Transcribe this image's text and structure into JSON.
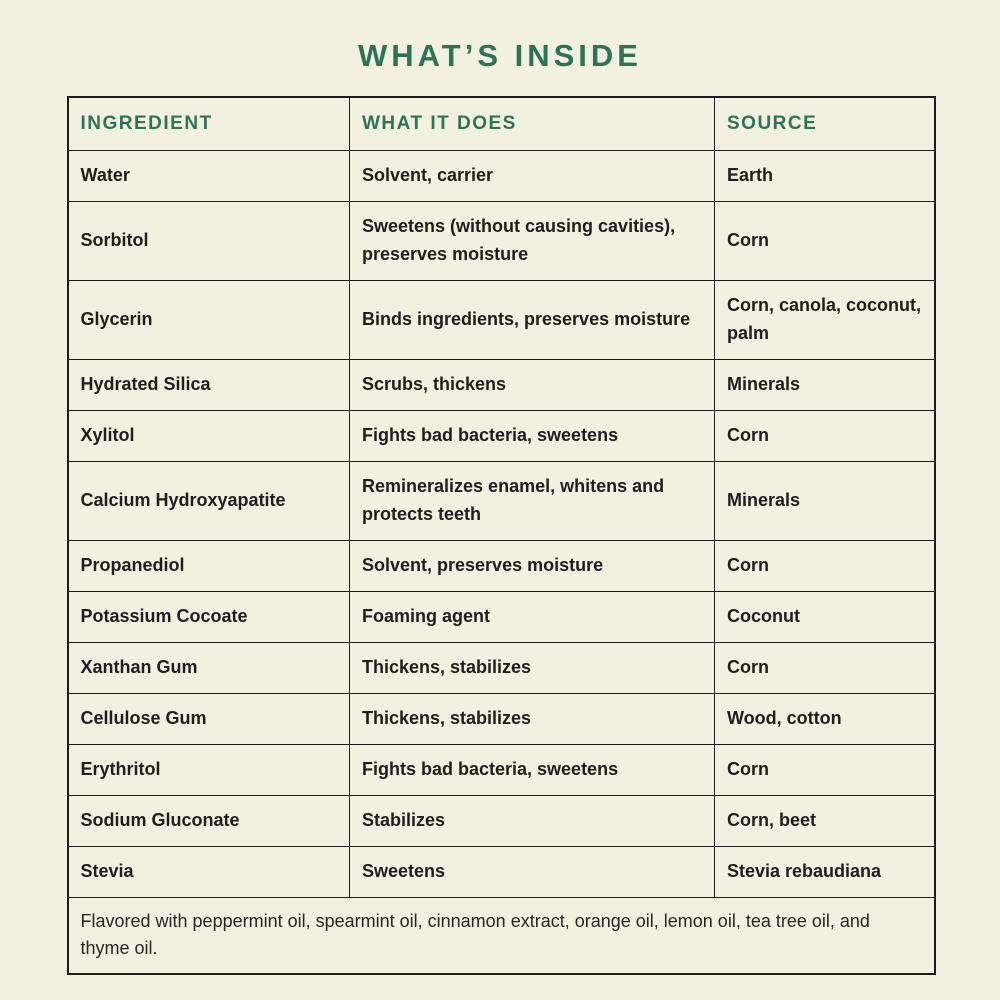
{
  "page": {
    "title": "WHAT’S INSIDE",
    "colors": {
      "background": "#f2f0e1",
      "accent_green": "#2d7457",
      "text": "#1e1e1c",
      "border": "#1c1c1c"
    }
  },
  "table": {
    "headers": [
      "INGREDIENT",
      "WHAT IT DOES",
      "SOURCE"
    ],
    "rows": [
      [
        "Water",
        "Solvent, carrier",
        "Earth"
      ],
      [
        "Sorbitol",
        "Sweetens (without causing cavities), preserves moisture",
        "Corn"
      ],
      [
        "Glycerin",
        "Binds ingredients, preserves moisture",
        "Corn, canola, coconut, palm"
      ],
      [
        "Hydrated Silica",
        "Scrubs, thickens",
        "Minerals"
      ],
      [
        "Xylitol",
        "Fights bad bacteria, sweetens",
        "Corn"
      ],
      [
        "Calcium Hydroxyapatite",
        "Remineralizes enamel, whitens and protects teeth",
        "Minerals"
      ],
      [
        "Propanediol",
        "Solvent, preserves moisture",
        "Corn"
      ],
      [
        "Potassium Cocoate",
        "Foaming agent",
        "Coconut"
      ],
      [
        "Xanthan Gum",
        "Thickens, stabilizes",
        "Corn"
      ],
      [
        "Cellulose Gum",
        "Thickens, stabilizes",
        "Wood, cotton"
      ],
      [
        "Erythritol",
        "Fights bad bacteria, sweetens",
        "Corn"
      ],
      [
        "Sodium Gluconate",
        "Stabilizes",
        "Corn, beet"
      ],
      [
        "Stevia",
        "Sweetens",
        "Stevia rebaudiana"
      ]
    ],
    "footer_note": "Flavored with peppermint oil, spearmint oil, cinnamon extract, orange oil, lemon oil, tea tree oil, and thyme oil."
  },
  "chart_data": {
    "type": "table",
    "title": "WHAT’S INSIDE",
    "columns": [
      "INGREDIENT",
      "WHAT IT DOES",
      "SOURCE"
    ],
    "rows": [
      [
        "Water",
        "Solvent, carrier",
        "Earth"
      ],
      [
        "Sorbitol",
        "Sweetens (without causing cavities), preserves moisture",
        "Corn"
      ],
      [
        "Glycerin",
        "Binds ingredients, preserves moisture",
        "Corn, canola, coconut, palm"
      ],
      [
        "Hydrated Silica",
        "Scrubs, thickens",
        "Minerals"
      ],
      [
        "Xylitol",
        "Fights bad bacteria, sweetens",
        "Corn"
      ],
      [
        "Calcium Hydroxyapatite",
        "Remineralizes enamel, whitens and protects teeth",
        "Minerals"
      ],
      [
        "Propanediol",
        "Solvent, preserves moisture",
        "Corn"
      ],
      [
        "Potassium Cocoate",
        "Foaming agent",
        "Coconut"
      ],
      [
        "Xanthan Gum",
        "Thickens, stabilizes",
        "Corn"
      ],
      [
        "Cellulose Gum",
        "Thickens, stabilizes",
        "Wood, cotton"
      ],
      [
        "Erythritol",
        "Fights bad bacteria, sweetens",
        "Corn"
      ],
      [
        "Sodium Gluconate",
        "Stabilizes",
        "Corn, beet"
      ],
      [
        "Stevia",
        "Sweetens",
        "Stevia rebaudiana"
      ]
    ],
    "footer": "Flavored with peppermint oil, spearmint oil, cinnamon extract, orange oil, lemon oil, tea tree oil, and thyme oil.",
    "layout": {
      "grid": "full-borders",
      "header_text_color": "#2d7457",
      "background": "#f2f0e1"
    }
  }
}
